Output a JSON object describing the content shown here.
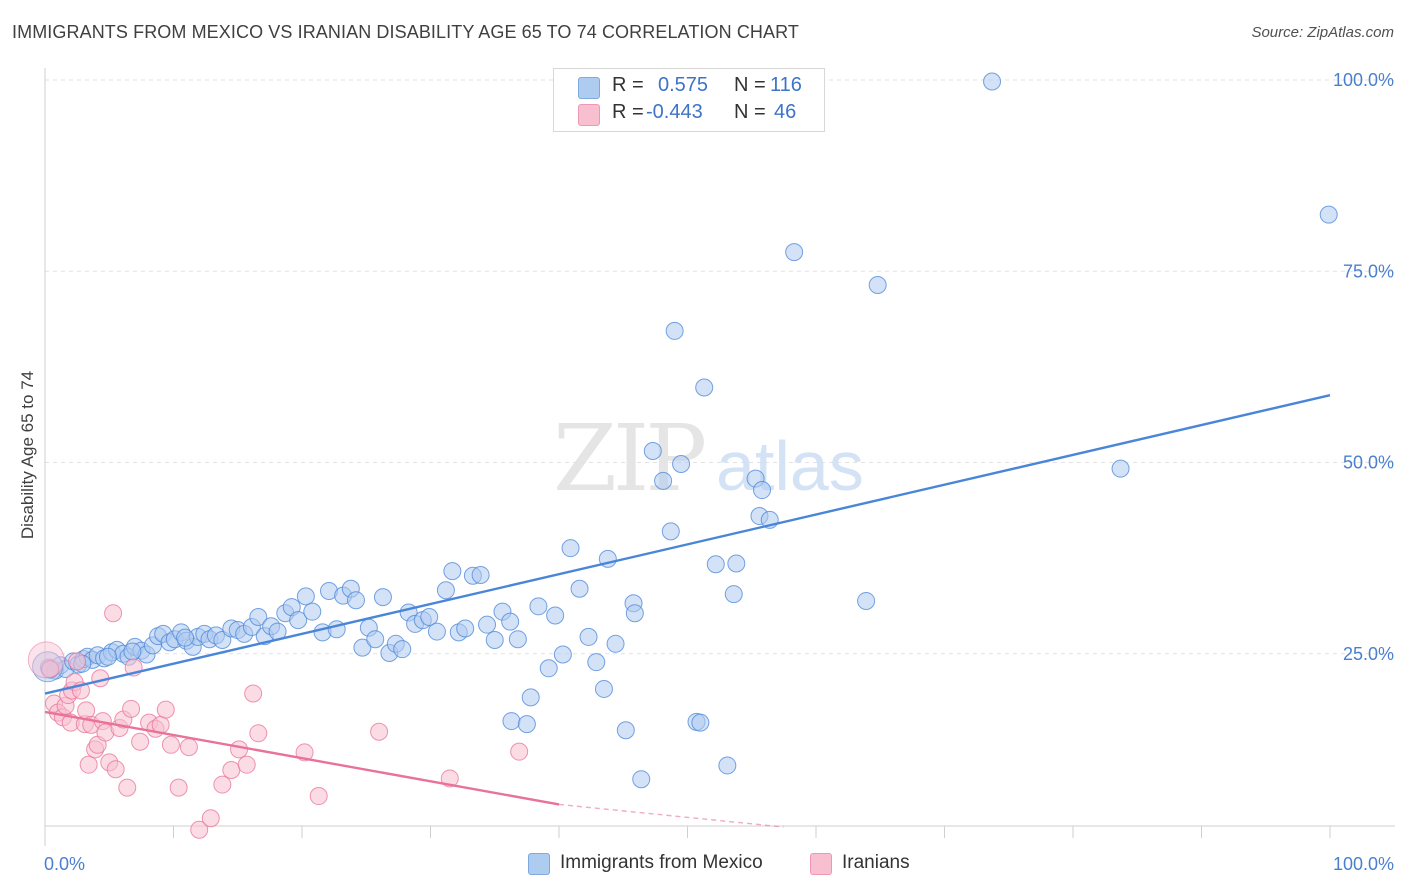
{
  "title": "IMMIGRANTS FROM MEXICO VS IRANIAN DISABILITY AGE 65 TO 74 CORRELATION CHART",
  "source": "Source: ZipAtlas.com",
  "watermark": {
    "zip": "ZIP",
    "atlas": "atlas"
  },
  "legend": {
    "rows": [
      {
        "r_label": "R =",
        "r_value": "0.575",
        "n_label": "N =",
        "n_value": "116",
        "color": "#aecbf0"
      },
      {
        "r_label": "R =",
        "r_value": "-0.443",
        "n_label": "N =",
        "n_value": "46",
        "color": "#f8bfd0"
      }
    ]
  },
  "bottom_legend": [
    {
      "label": "Immigrants from Mexico",
      "color": "#aecbf0"
    },
    {
      "label": "Iranians",
      "color": "#f8bfd0"
    }
  ],
  "chart_data": {
    "type": "scatter",
    "title": "IMMIGRANTS FROM MEXICO VS IRANIAN DISABILITY AGE 65 TO 74 CORRELATION CHART",
    "xlabel": "",
    "ylabel": "Disability Age 65 to 74",
    "xlim": [
      0,
      100
    ],
    "ylim": [
      0,
      100
    ],
    "x_tick_labels": [
      "0.0%",
      "100.0%"
    ],
    "y_ticks": [
      25,
      50,
      75,
      100
    ],
    "y_tick_labels": [
      "25.0%",
      "50.0%",
      "75.0%",
      "100.0%"
    ],
    "grid": true,
    "legend_position": "top-center",
    "series": [
      {
        "name": "Immigrants from Mexico",
        "color": "#4a86d8",
        "fill": "#aecbf0",
        "trend": {
          "x": [
            0,
            100
          ],
          "y": [
            19.8,
            58.8
          ]
        },
        "points": [
          [
            0.3,
            23.2
          ],
          [
            0.8,
            22.8
          ],
          [
            1.2,
            23.5
          ],
          [
            1.6,
            23.0
          ],
          [
            2.2,
            24.0
          ],
          [
            2.6,
            23.6
          ],
          [
            3.0,
            24.3
          ],
          [
            3.3,
            24.6
          ],
          [
            3.7,
            24.2
          ],
          [
            4.1,
            24.8
          ],
          [
            4.6,
            24.4
          ],
          [
            5.2,
            25.2
          ],
          [
            5.6,
            25.5
          ],
          [
            6.1,
            25.0
          ],
          [
            6.5,
            24.6
          ],
          [
            7.0,
            25.9
          ],
          [
            7.5,
            25.4
          ],
          [
            7.9,
            24.9
          ],
          [
            8.4,
            26.1
          ],
          [
            8.8,
            27.3
          ],
          [
            9.2,
            27.6
          ],
          [
            9.7,
            26.5
          ],
          [
            10.1,
            26.9
          ],
          [
            10.6,
            27.8
          ],
          [
            11.0,
            26.7
          ],
          [
            11.5,
            25.9
          ],
          [
            11.9,
            27.2
          ],
          [
            12.4,
            27.6
          ],
          [
            12.8,
            26.9
          ],
          [
            13.3,
            27.4
          ],
          [
            13.8,
            26.8
          ],
          [
            14.5,
            28.3
          ],
          [
            15.0,
            28.1
          ],
          [
            15.5,
            27.6
          ],
          [
            16.1,
            28.5
          ],
          [
            16.6,
            29.8
          ],
          [
            17.1,
            27.3
          ],
          [
            17.6,
            28.6
          ],
          [
            18.1,
            27.9
          ],
          [
            18.7,
            30.3
          ],
          [
            19.2,
            31.1
          ],
          [
            19.7,
            29.4
          ],
          [
            20.3,
            32.5
          ],
          [
            20.8,
            30.5
          ],
          [
            21.6,
            27.8
          ],
          [
            22.1,
            33.2
          ],
          [
            22.7,
            28.2
          ],
          [
            23.2,
            32.6
          ],
          [
            23.8,
            33.5
          ],
          [
            24.2,
            32.0
          ],
          [
            24.7,
            25.8
          ],
          [
            25.2,
            28.4
          ],
          [
            25.7,
            26.9
          ],
          [
            26.3,
            32.4
          ],
          [
            26.8,
            25.1
          ],
          [
            27.3,
            26.3
          ],
          [
            27.8,
            25.6
          ],
          [
            28.3,
            30.4
          ],
          [
            28.8,
            28.9
          ],
          [
            29.4,
            29.4
          ],
          [
            29.9,
            29.8
          ],
          [
            30.5,
            27.9
          ],
          [
            31.2,
            33.3
          ],
          [
            31.7,
            35.8
          ],
          [
            32.2,
            27.8
          ],
          [
            32.7,
            28.3
          ],
          [
            33.3,
            35.2
          ],
          [
            33.9,
            35.3
          ],
          [
            34.4,
            28.8
          ],
          [
            35.0,
            26.8
          ],
          [
            35.6,
            30.5
          ],
          [
            36.2,
            29.2
          ],
          [
            36.8,
            26.9
          ],
          [
            36.3,
            16.2
          ],
          [
            37.5,
            15.8
          ],
          [
            37.8,
            19.3
          ],
          [
            38.4,
            31.2
          ],
          [
            39.2,
            23.1
          ],
          [
            39.7,
            30.0
          ],
          [
            40.3,
            24.9
          ],
          [
            40.9,
            38.8
          ],
          [
            41.6,
            33.5
          ],
          [
            42.3,
            27.2
          ],
          [
            42.9,
            23.9
          ],
          [
            43.5,
            20.4
          ],
          [
            43.8,
            37.4
          ],
          [
            44.4,
            26.3
          ],
          [
            45.2,
            15.0
          ],
          [
            45.8,
            31.6
          ],
          [
            45.9,
            30.3
          ],
          [
            46.4,
            8.6
          ],
          [
            47.3,
            51.5
          ],
          [
            48.1,
            47.6
          ],
          [
            48.7,
            41.0
          ],
          [
            49.0,
            67.2
          ],
          [
            49.5,
            49.8
          ],
          [
            50.7,
            16.1
          ],
          [
            51.0,
            16.0
          ],
          [
            51.3,
            59.8
          ],
          [
            52.2,
            36.7
          ],
          [
            53.1,
            10.4
          ],
          [
            53.6,
            32.8
          ],
          [
            53.8,
            36.8
          ],
          [
            55.3,
            47.9
          ],
          [
            55.6,
            43.0
          ],
          [
            55.8,
            46.4
          ],
          [
            56.4,
            42.5
          ],
          [
            58.3,
            77.5
          ],
          [
            63.9,
            31.9
          ],
          [
            64.8,
            73.2
          ],
          [
            73.7,
            99.8
          ],
          [
            83.7,
            49.2
          ],
          [
            99.9,
            82.4
          ],
          [
            0.4,
            22.9
          ],
          [
            2.9,
            23.7
          ],
          [
            4.9,
            24.6
          ],
          [
            6.8,
            25.3
          ],
          [
            10.9,
            27.1
          ]
        ]
      },
      {
        "name": "Iranians",
        "color": "#e8729a",
        "fill": "#f8bfd0",
        "trend": {
          "x": [
            0,
            40
          ],
          "y": [
            17.4,
            5.3
          ]
        },
        "trend_dashed": {
          "x": [
            40,
            100
          ],
          "y": [
            5.3,
            -12.9
          ]
        },
        "points": [
          [
            0.4,
            23.0
          ],
          [
            0.7,
            18.5
          ],
          [
            1.0,
            17.3
          ],
          [
            1.4,
            16.7
          ],
          [
            1.6,
            18.2
          ],
          [
            1.8,
            19.6
          ],
          [
            2.0,
            16.0
          ],
          [
            2.1,
            20.2
          ],
          [
            2.3,
            21.3
          ],
          [
            2.5,
            24.0
          ],
          [
            2.8,
            20.2
          ],
          [
            3.1,
            15.8
          ],
          [
            3.2,
            17.6
          ],
          [
            3.4,
            10.5
          ],
          [
            3.6,
            15.7
          ],
          [
            3.9,
            12.5
          ],
          [
            4.1,
            13.1
          ],
          [
            4.3,
            21.8
          ],
          [
            4.5,
            16.2
          ],
          [
            4.7,
            14.7
          ],
          [
            5.0,
            10.8
          ],
          [
            5.3,
            30.3
          ],
          [
            5.5,
            9.9
          ],
          [
            5.8,
            15.3
          ],
          [
            6.1,
            16.4
          ],
          [
            6.4,
            7.5
          ],
          [
            6.7,
            17.8
          ],
          [
            6.9,
            23.2
          ],
          [
            7.4,
            13.5
          ],
          [
            8.1,
            16.0
          ],
          [
            8.6,
            15.2
          ],
          [
            9.0,
            15.7
          ],
          [
            9.4,
            17.7
          ],
          [
            9.8,
            13.1
          ],
          [
            10.4,
            7.5
          ],
          [
            11.2,
            12.8
          ],
          [
            12.0,
            2.0
          ],
          [
            12.9,
            3.5
          ],
          [
            13.8,
            7.9
          ],
          [
            14.5,
            9.8
          ],
          [
            15.1,
            12.5
          ],
          [
            15.7,
            10.5
          ],
          [
            16.2,
            19.8
          ],
          [
            16.6,
            14.6
          ],
          [
            20.2,
            12.1
          ],
          [
            21.3,
            6.4
          ],
          [
            26.0,
            14.8
          ],
          [
            31.5,
            8.7
          ],
          [
            36.9,
            12.2
          ]
        ]
      }
    ]
  }
}
